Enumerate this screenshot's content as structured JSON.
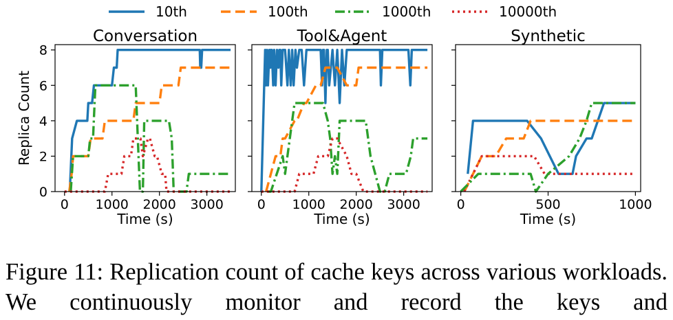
{
  "chart_data": [
    {
      "type": "line",
      "title": "Conversation",
      "xlabel": "Time (s)",
      "ylabel": "Replica Count",
      "xlim": [
        -200,
        3600
      ],
      "ylim": [
        0,
        8.3
      ],
      "xticks": [
        0,
        1000,
        2000,
        3000
      ],
      "yticks": [
        0,
        2,
        4,
        6,
        8
      ],
      "series": [
        {
          "name": "10th",
          "x": [
            110,
            160,
            260,
            480,
            500,
            580,
            620,
            1000,
            1040,
            1100,
            1120,
            2850,
            2860,
            2880,
            2900,
            3500
          ],
          "y": [
            0,
            3,
            4,
            4,
            5,
            5,
            6,
            6,
            7,
            7,
            8,
            8,
            7,
            7,
            8,
            8
          ]
        },
        {
          "name": "100th",
          "x": [
            100,
            150,
            180,
            280,
            500,
            550,
            800,
            850,
            1150,
            1200,
            1450,
            1500,
            2000,
            2050,
            2400,
            2450,
            2700,
            2750,
            3500
          ],
          "y": [
            0,
            1,
            2,
            2,
            2,
            3,
            3,
            4,
            4,
            4,
            4,
            5,
            5,
            6,
            6,
            7,
            7,
            7,
            7
          ]
        },
        {
          "name": "1000th",
          "x": [
            130,
            180,
            500,
            540,
            600,
            650,
            950,
            1000,
            1500,
            1560,
            1590,
            1650,
            1680,
            1750,
            2200,
            2260,
            2300,
            2570,
            2620,
            2650,
            3500
          ],
          "y": [
            0,
            2,
            2,
            3,
            3,
            6,
            6,
            6,
            6,
            2,
            0,
            0,
            4,
            4,
            4,
            3,
            0,
            0,
            1,
            1,
            1
          ],
          "x_full": [
            130,
            180,
            300,
            500,
            540,
            600,
            650,
            950,
            1000,
            1500,
            1560,
            1590,
            1650,
            1680,
            1750,
            2200,
            2260,
            2300,
            2570,
            2620,
            2650,
            3500
          ]
        },
        {
          "name": "10000th",
          "x": [
            0,
            850,
            920,
            1200,
            1260,
            1400,
            1450,
            1550,
            1600,
            1650,
            1760,
            1800,
            1900,
            1950,
            2050,
            2120,
            2150,
            2200,
            3500
          ],
          "y": [
            0,
            0,
            1,
            1,
            2,
            2,
            3,
            3,
            3,
            2,
            3,
            3,
            2,
            2,
            1,
            1,
            0,
            0,
            0
          ]
        }
      ]
    },
    {
      "type": "line",
      "title": "Tool&Agent",
      "xlabel": "Time (s)",
      "ylabel": "",
      "xlim": [
        -200,
        3600
      ],
      "ylim": [
        0,
        8.3
      ],
      "xticks": [
        0,
        1000,
        2000,
        3000
      ],
      "yticks": [
        0,
        2,
        4,
        6,
        8
      ],
      "series": [
        {
          "name": "10th",
          "x": [
            0,
            80,
            100,
            120,
            140,
            170,
            190,
            200,
            220,
            250,
            270,
            300,
            330,
            360,
            380,
            400,
            420,
            450,
            500,
            550,
            580,
            620,
            650,
            680,
            720,
            750,
            800,
            850,
            900,
            950,
            1000,
            1250,
            1280,
            1300,
            1320,
            1350,
            1380,
            1400,
            1430,
            1500,
            1550,
            1600,
            1650,
            1700,
            1750,
            1800,
            1850,
            2500,
            2520,
            2550,
            2600,
            3100,
            3140,
            3170,
            3200,
            3500
          ],
          "y": [
            0,
            8,
            6,
            8,
            6,
            8,
            7,
            8,
            8,
            6,
            8,
            6,
            8,
            7,
            8,
            8,
            6,
            8,
            8,
            6,
            8,
            6,
            8,
            6,
            8,
            7,
            8,
            8,
            6,
            8,
            8,
            8,
            6,
            8,
            8,
            5,
            8,
            8,
            6,
            8,
            6,
            8,
            5,
            8,
            6,
            8,
            8,
            8,
            6,
            8,
            8,
            8,
            6,
            8,
            8,
            8
          ]
        },
        {
          "name": "100th",
          "x": [
            100,
            200,
            300,
            400,
            450,
            500,
            700,
            750,
            900,
            950,
            1150,
            1250,
            1350,
            1600,
            1800,
            2000,
            2050,
            3200,
            3250,
            3500
          ],
          "y": [
            0,
            1,
            2,
            2,
            3,
            3,
            4,
            4,
            5,
            5,
            6,
            6,
            7,
            7,
            6,
            6,
            7,
            7,
            7,
            7
          ]
        },
        {
          "name": "1000th",
          "x": [
            150,
            200,
            450,
            500,
            550,
            650,
            700,
            1300,
            1400,
            1450,
            1500,
            1550,
            1600,
            1650,
            1800,
            2200,
            2300,
            2500,
            2600,
            2700,
            3050,
            3150,
            3200,
            3250,
            3500
          ],
          "y": [
            0,
            0,
            2,
            1,
            2,
            4,
            5,
            5,
            4,
            3,
            1,
            2,
            1,
            4,
            4,
            4,
            2,
            0,
            0,
            1,
            1,
            2,
            3,
            3,
            3
          ]
        },
        {
          "name": "10000th",
          "x": [
            0,
            700,
            800,
            1100,
            1200,
            1400,
            1500,
            1600,
            1800,
            1900,
            2000,
            2150,
            3500
          ],
          "y": [
            0,
            0,
            1,
            1,
            2,
            2,
            3,
            3,
            2,
            1,
            1,
            0,
            0
          ]
        }
      ]
    },
    {
      "type": "line",
      "title": "Synthetic",
      "xlabel": "Time (s)",
      "ylabel": "",
      "xlim": [
        -30,
        1030
      ],
      "ylim": [
        0,
        8.3
      ],
      "xticks": [
        0,
        500,
        1000
      ],
      "yticks": [
        0,
        2,
        4,
        6,
        8
      ],
      "series": [
        {
          "name": "10th",
          "x": [
            40,
            70,
            300,
            380,
            460,
            560,
            640,
            660,
            720,
            750,
            820,
            1000
          ],
          "y": [
            1,
            4,
            4,
            4,
            3,
            1,
            1,
            2,
            3,
            3,
            5,
            5
          ]
        },
        {
          "name": "100th",
          "x": [
            20,
            120,
            200,
            260,
            360,
            400,
            1000
          ],
          "y": [
            0,
            2,
            2,
            3,
            3,
            4,
            4
          ]
        },
        {
          "name": "10000th",
          "x": [
            20,
            120,
            150,
            300,
            420,
            480,
            500,
            1000
          ],
          "y": [
            0,
            2,
            2,
            2,
            2,
            1,
            1,
            1
          ]
        },
        {
          "name": "1000th",
          "x": [
            0,
            100,
            250,
            400,
            430,
            500,
            620,
            680,
            720,
            750,
            780,
            820,
            1000
          ],
          "y": [
            0,
            1,
            1,
            1,
            0,
            1,
            2,
            3,
            4,
            5,
            5,
            5,
            5
          ]
        }
      ]
    }
  ],
  "legend": {
    "placement": "top",
    "entries": [
      "10th",
      "100th",
      "1000th",
      "10000th"
    ]
  },
  "colors": {
    "10th": "#1f77b4",
    "100th": "#ff7f0e",
    "1000th": "#2ca02c",
    "10000th": "#d62728"
  },
  "caption": "Figure 11: Replication count of cache keys across various workloads. We continuously monitor and record the keys and"
}
